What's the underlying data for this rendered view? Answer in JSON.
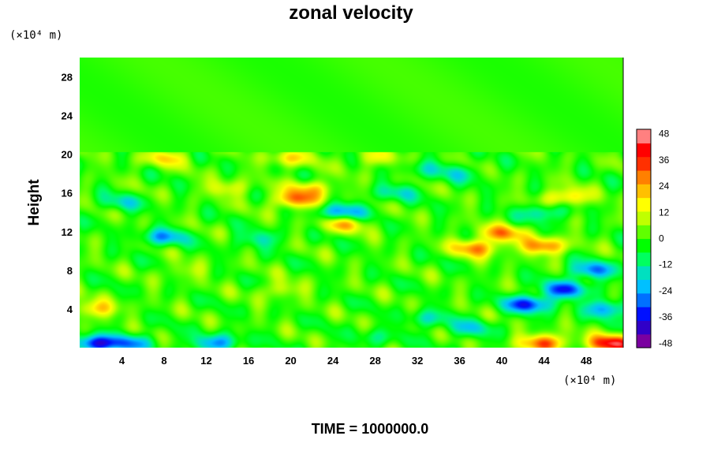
{
  "chart_data": {
    "type": "heatmap",
    "title": "zonal velocity",
    "ylabel": "Height",
    "xlabel": "",
    "x_unit": "(×10⁴ m)",
    "y_unit": "(×10⁴ m)",
    "xlim": [
      0,
      51.5
    ],
    "ylim": [
      0,
      30
    ],
    "x_ticks": [
      4,
      8,
      12,
      16,
      20,
      24,
      28,
      32,
      36,
      40,
      44,
      48
    ],
    "y_ticks": [
      4,
      8,
      12,
      16,
      20,
      24,
      28
    ],
    "colorbar": {
      "range": [
        -50,
        50
      ],
      "ticks": [
        48,
        36,
        24,
        12,
        0,
        -12,
        -24,
        -36,
        -48
      ],
      "colors": [
        "#7a00a0",
        "#3000c8",
        "#0010ff",
        "#0070ff",
        "#00c0ff",
        "#00e0c0",
        "#00ff60",
        "#00ff00",
        "#60ff00",
        "#c0ff00",
        "#ffff00",
        "#ffc000",
        "#ff8000",
        "#ff3000",
        "#ff0000",
        "#ff8080"
      ]
    },
    "field": {
      "background": 0,
      "stratosphere_top": 30,
      "tropopause": 20.2,
      "features": [
        {
          "x": 1.5,
          "y": 0.4,
          "v": -38
        },
        {
          "x": 5,
          "y": 0.5,
          "v": -22
        },
        {
          "x": 13,
          "y": 0.5,
          "v": -26
        },
        {
          "x": 1.5,
          "y": 4,
          "v": 20
        },
        {
          "x": 20.5,
          "y": 15.3,
          "v": 30
        },
        {
          "x": 22,
          "y": 16.5,
          "v": 18
        },
        {
          "x": 25,
          "y": 14,
          "v": -28
        },
        {
          "x": 25,
          "y": 12.8,
          "v": 22
        },
        {
          "x": 14,
          "y": 16.5,
          "v": 14
        },
        {
          "x": 40,
          "y": 11.8,
          "v": 26
        },
        {
          "x": 37.5,
          "y": 10.3,
          "v": 28
        },
        {
          "x": 44,
          "y": 10.5,
          "v": 30
        },
        {
          "x": 46,
          "y": 15.5,
          "v": 24
        },
        {
          "x": 44,
          "y": 14,
          "v": -20
        },
        {
          "x": 42.5,
          "y": 4.5,
          "v": -36
        },
        {
          "x": 46,
          "y": 6,
          "v": -32
        },
        {
          "x": 48.5,
          "y": 8,
          "v": -28
        },
        {
          "x": 50,
          "y": 4,
          "v": -26
        },
        {
          "x": 44,
          "y": 0.5,
          "v": 34
        },
        {
          "x": 50.5,
          "y": 0.4,
          "v": 46
        },
        {
          "x": 8,
          "y": 11.4,
          "v": -24
        },
        {
          "x": 17,
          "y": 11.2,
          "v": -14
        },
        {
          "x": 33,
          "y": 3,
          "v": -14
        },
        {
          "x": 37,
          "y": 2,
          "v": -16
        },
        {
          "x": 28,
          "y": 1,
          "v": -10
        },
        {
          "x": 4,
          "y": 15,
          "v": -14
        },
        {
          "x": 30,
          "y": 16,
          "v": -14
        },
        {
          "x": 36,
          "y": 18,
          "v": -12
        },
        {
          "x": 19,
          "y": 6,
          "v": 12
        },
        {
          "x": 10,
          "y": 8,
          "v": 8
        },
        {
          "x": 8,
          "y": 19.6,
          "v": 18
        },
        {
          "x": 20,
          "y": 19.6,
          "v": 18
        },
        {
          "x": 28,
          "y": 19.6,
          "v": 14
        },
        {
          "x": 33,
          "y": 18.5,
          "v": -10
        }
      ]
    }
  },
  "labels": {
    "title": "zonal velocity",
    "ylabel": "Height",
    "y_unit": "(×10⁴ m)",
    "x_unit": "(×10⁴ m)",
    "footer": "TIME = 1000000.0"
  }
}
